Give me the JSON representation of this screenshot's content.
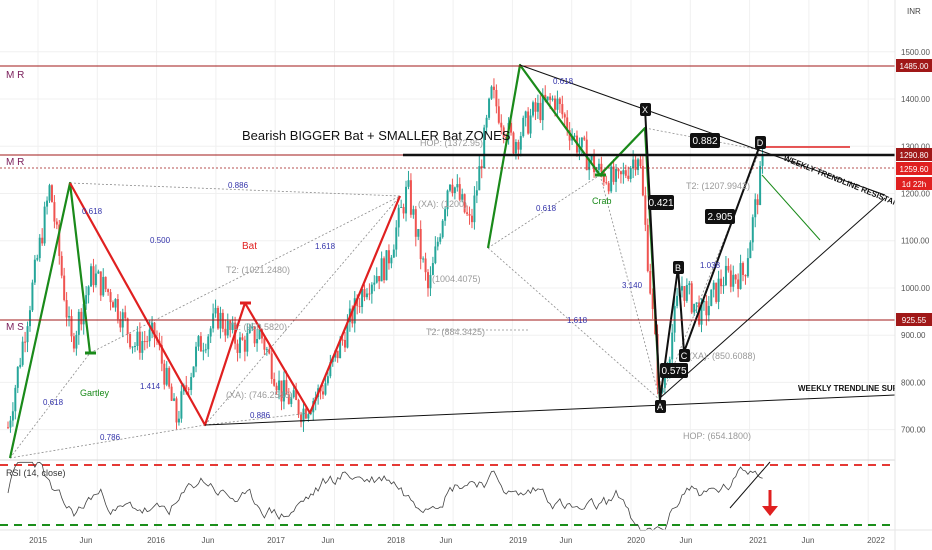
{
  "colors": {
    "green": "#1a8a1a",
    "red": "#e02020",
    "darkred": "#a01818",
    "black": "#111111",
    "grid": "#f0f0f0",
    "muted": "#9a9a9a",
    "purple": "#7a1d5a",
    "rsi_red_line": "#e53935",
    "rsi_green_line": "#1b8f1b",
    "bar_up": "#26a69a",
    "bar_down": "#ef5350"
  },
  "header": {
    "currency_badge": "INR"
  },
  "title": "Bearish BIGGER Bat + SMALLER Bat ZONES",
  "levels_left": {
    "mr_top": "M  R",
    "mr_mid": "M R",
    "ms": "M S"
  },
  "price_axis": {
    "ticks": [
      "1500.00",
      "1400.00",
      "1300.00",
      "1200.00",
      "1100.00",
      "1000.00",
      "900.00",
      "800.00",
      "700.00"
    ],
    "badges": {
      "resistance": "1485.00",
      "weekly_res": "1290.80",
      "last": "1259.60",
      "countdown": "1d 22h",
      "support": "925.55"
    }
  },
  "time_axis": [
    "2015",
    "Jun",
    "2016",
    "Jun",
    "2017",
    "Jun",
    "2018",
    "Jun",
    "2019",
    "Jun",
    "2020",
    "Jun",
    "2021",
    "Jun",
    "2022"
  ],
  "annotations": {
    "hop_top": "HOP: (1372.95)",
    "t2_right": "T2: (1207.9942)",
    "t2_bat": "T2: (1021.2480)",
    "t1_bat": "T1: (950.5820)",
    "xa_bat": "(XA): (746.2546)",
    "p1004": "(1004.4075)",
    "t2_884": "T2: (884.3425)",
    "xa_right": "(XA): (850.6088)",
    "hop_bottom": "HOP: (654.1800)",
    "xa_upper": "(XA): (1200)",
    "bat_label": "Bat",
    "crab_label": "Crab",
    "gartley_label": "Gartley",
    "r0618a": "0.618",
    "r0500": "0.500",
    "r0886": "0.886",
    "r1618": "1.618",
    "r0618b": "0.618",
    "r1414": "1.414",
    "r0786": "0.786",
    "r0886b": "0.886",
    "r0618c": "0.618",
    "r0618d": "0.618",
    "r3140": "3.140",
    "r1618b": "1.618",
    "r1038": "1.038",
    "box_0882": "0.882",
    "box_0421": "0.421",
    "box_2905": "2.905",
    "box_0575": "0.575",
    "pt_x": "X",
    "pt_a": "A",
    "pt_b": "B",
    "pt_c": "C",
    "pt_d": "D",
    "weekly_res": "WEEKLY TRENDLINE RESISTANCE",
    "weekly_sup": "WEEKLY TRENDLINE SUPPORT"
  },
  "rsi": {
    "label": "RSI (14, close)",
    "ticks": [
      "60.00",
      "40.00"
    ]
  },
  "chart_data": {
    "type": "line",
    "title": "Bearish BIGGER Bat + SMALLER Bat ZONES",
    "xlabel": "",
    "ylabel": "",
    "ylim": [
      640,
      1525
    ],
    "x": [
      "2015-01",
      "2015-03",
      "2015-05",
      "2015-07",
      "2015-09",
      "2015-11",
      "2016-01",
      "2016-03",
      "2016-05",
      "2016-07",
      "2016-09",
      "2016-11",
      "2017-01",
      "2017-03",
      "2017-05",
      "2017-07",
      "2017-09",
      "2017-11",
      "2018-01",
      "2018-03",
      "2018-05",
      "2018-07",
      "2018-09",
      "2018-11",
      "2019-01",
      "2019-03",
      "2019-05",
      "2019-07",
      "2019-09",
      "2019-11",
      "2020-01",
      "2020-03",
      "2020-05",
      "2020-07",
      "2020-09",
      "2020-11",
      "2021-01"
    ],
    "series": [
      {
        "values": [
          705,
          960,
          1215,
          880,
          1030,
          980,
          880,
          900,
          720,
          870,
          940,
          880,
          905,
          780,
          740,
          790,
          900,
          1010,
          1050,
          1210,
          990,
          1240,
          1130,
          1410,
          1305,
          1370,
          1400,
          1310,
          1250,
          1220,
          1290,
          760,
          1010,
          940,
          1020,
          1030,
          1290
        ]
      }
    ],
    "horizontal_levels": [
      1485,
      1290.8,
      925.55
    ],
    "rsi_levels": [
      70,
      30
    ]
  }
}
